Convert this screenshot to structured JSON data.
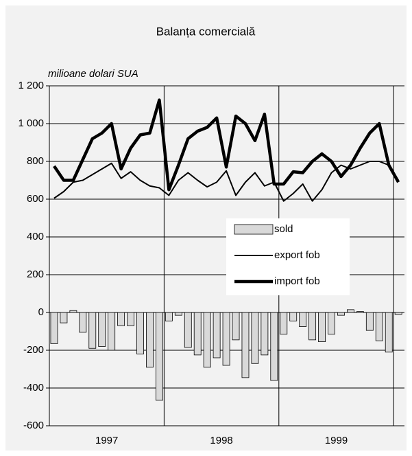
{
  "chart_data": {
    "type": "combo",
    "title": "Balanța comercială",
    "y_axis_label": "milioane dolari SUA",
    "x_labels": [
      "1997",
      "1998",
      "1999"
    ],
    "ylim": [
      -600,
      1200
    ],
    "yticks": [
      {
        "value": 1200,
        "label": "1 200"
      },
      {
        "value": 1000,
        "label": "1 000"
      },
      800,
      600,
      400,
      200,
      0,
      -200,
      -400,
      -600
    ],
    "grid": true,
    "series": [
      {
        "name": "sold",
        "type": "bar",
        "color": "#d9d9d9",
        "values": [
          -165,
          -55,
          10,
          -105,
          -190,
          -180,
          -200,
          -70,
          -70,
          -220,
          -290,
          -465,
          -45,
          -15,
          -185,
          -225,
          -290,
          -240,
          -280,
          -145,
          -345,
          -270,
          -225,
          -360,
          -115,
          -45,
          -75,
          -145,
          -155,
          -115,
          -15,
          15,
          5,
          -95,
          -150,
          -210,
          -10
        ]
      },
      {
        "name": "export fob",
        "type": "line",
        "color": "#000000",
        "width": 2,
        "values": [
          605,
          640,
          690,
          700,
          730,
          760,
          790,
          710,
          745,
          700,
          670,
          660,
          620,
          700,
          740,
          700,
          665,
          690,
          750,
          620,
          690,
          740,
          670,
          690,
          590,
          630,
          680,
          590,
          650,
          740,
          780,
          760,
          780,
          800,
          800,
          780,
          700
        ]
      },
      {
        "name": "import fob",
        "type": "line",
        "color": "#000000",
        "width": 4.5,
        "values": [
          775,
          700,
          700,
          810,
          920,
          950,
          1000,
          760,
          870,
          940,
          950,
          1125,
          650,
          780,
          920,
          960,
          980,
          1030,
          770,
          1040,
          1000,
          910,
          1050,
          680,
          680,
          745,
          740,
          800,
          840,
          800,
          720,
          780,
          870,
          950,
          1000,
          780,
          690
        ]
      }
    ]
  }
}
